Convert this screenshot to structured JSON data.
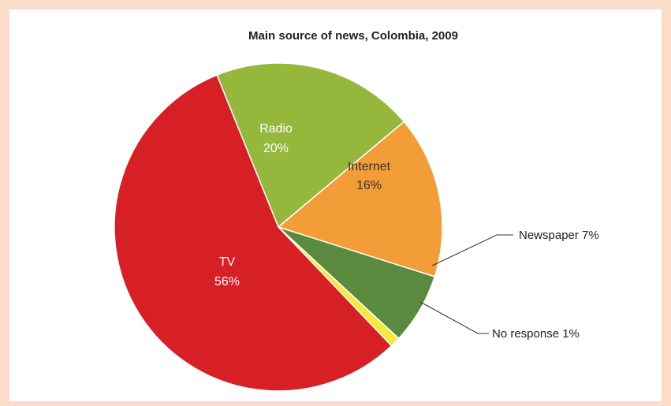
{
  "chart_data": {
    "type": "pie",
    "title": "Main source of news, Colombia, 2009",
    "slices": [
      {
        "label": "TV",
        "value": 56,
        "display": "56%",
        "color": "#d71f26"
      },
      {
        "label": "Radio",
        "value": 20,
        "display": "20%",
        "color": "#95b73c"
      },
      {
        "label": "Internet",
        "value": 16,
        "display": "16%",
        "color": "#f29d38"
      },
      {
        "label": "Newspaper",
        "value": 7,
        "display": "7%",
        "color": "#5a8a3e"
      },
      {
        "label": "No response",
        "value": 1,
        "display": "1%",
        "color": "#f5e93b"
      }
    ],
    "legend": "none",
    "outside_labels": {
      "newspaper": "Newspaper  7%",
      "no_response": "No response 1%"
    }
  }
}
